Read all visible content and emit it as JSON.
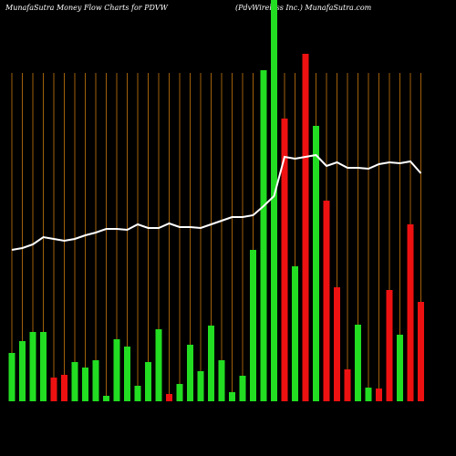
{
  "chart_data": {
    "type": "bar",
    "title": "MunafaSutra  Money Flow  Charts for PDVW",
    "subtitle": "(PdvWireless Inc.) MunafaSutra.com",
    "categories": [
      null,
      null,
      null,
      null,
      null,
      null,
      null,
      null,
      null,
      null,
      null,
      null,
      null,
      null,
      null,
      null,
      null,
      null,
      null,
      null,
      null,
      null,
      null,
      null,
      null,
      null,
      null,
      null,
      null,
      null,
      null,
      null,
      null,
      null,
      null,
      null,
      null,
      null,
      null,
      null
    ],
    "values": [
      53,
      66,
      76,
      76,
      26,
      29,
      43,
      37,
      45,
      6,
      68,
      60,
      17,
      43,
      79,
      8,
      19,
      62,
      33,
      83,
      45,
      10,
      28,
      166,
      363,
      440,
      310,
      148,
      381,
      302,
      220,
      125,
      35,
      84,
      15,
      14,
      122,
      73,
      194,
      109
    ],
    "colors": [
      "#22dd22",
      "#22dd22",
      "#22dd22",
      "#22dd22",
      "#ee1111",
      "#ee1111",
      "#22dd22",
      "#22dd22",
      "#22dd22",
      "#22dd22",
      "#22dd22",
      "#22dd22",
      "#22dd22",
      "#22dd22",
      "#22dd22",
      "#ee1111",
      "#22dd22",
      "#22dd22",
      "#22dd22",
      "#22dd22",
      "#22dd22",
      "#22dd22",
      "#22dd22",
      "#22dd22",
      "#22dd22",
      "#22dd22",
      "#ee1111",
      "#22dd22",
      "#ee1111",
      "#22dd22",
      "#ee1111",
      "#ee1111",
      "#ee1111",
      "#22dd22",
      "#22dd22",
      "#ee1111",
      "#ee1111",
      "#22dd22",
      "#ee1111",
      "#ee1111"
    ],
    "line": {
      "color": "#ffffff",
      "values": [
        166,
        168,
        172,
        180,
        178,
        176,
        178,
        182,
        185,
        189,
        189,
        188,
        194,
        190,
        190,
        195,
        191,
        191,
        190,
        194,
        198,
        202,
        202,
        204,
        214,
        225,
        268,
        266,
        268,
        270,
        258,
        262,
        256,
        256,
        255,
        260,
        262,
        261,
        263,
        250
      ]
    },
    "ylim": [
      0,
      440
    ],
    "grid": true,
    "grid_color": "#a0600a"
  }
}
